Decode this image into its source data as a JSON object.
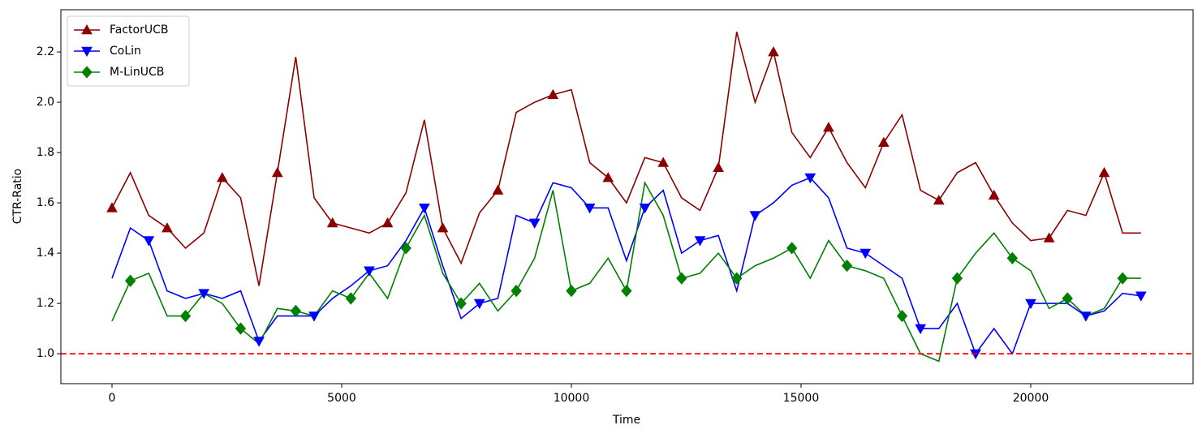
{
  "chart_data": {
    "type": "line",
    "x_label": "Time",
    "y_label": "CTR-Ratio",
    "x": [
      0,
      400,
      800,
      1200,
      1600,
      2000,
      2400,
      2800,
      3200,
      3600,
      4000,
      4400,
      4800,
      5200,
      5600,
      6000,
      6400,
      6800,
      7200,
      7600,
      8000,
      8400,
      8800,
      9200,
      9600,
      10000,
      10400,
      10800,
      11200,
      11600,
      12000,
      12400,
      12800,
      13200,
      13600,
      14000,
      14400,
      14800,
      15200,
      15600,
      16000,
      16400,
      16800,
      17200,
      17600,
      18000,
      18400,
      18800,
      19200,
      19600,
      20000,
      20400,
      20800,
      21200,
      21600,
      22000,
      22400
    ],
    "series": [
      {
        "name": "FactorUCB",
        "color": "#8b0000",
        "marker": "triangle-up",
        "values": [
          1.58,
          1.72,
          1.55,
          1.5,
          1.42,
          1.48,
          1.7,
          1.62,
          1.27,
          1.72,
          2.18,
          1.62,
          1.52,
          1.5,
          1.48,
          1.52,
          1.64,
          1.93,
          1.5,
          1.36,
          1.56,
          1.65,
          1.96,
          2.0,
          2.03,
          2.05,
          1.76,
          1.7,
          1.6,
          1.78,
          1.76,
          1.62,
          1.57,
          1.74,
          2.28,
          2.0,
          2.2,
          1.88,
          1.78,
          1.9,
          1.76,
          1.66,
          1.84,
          1.95,
          1.65,
          1.61,
          1.72,
          1.76,
          1.63,
          1.52,
          1.45,
          1.46,
          1.57,
          1.55,
          1.72,
          1.48,
          1.48
        ]
      },
      {
        "name": "CoLin",
        "color": "#0000ff",
        "marker": "triangle-down",
        "values": [
          1.3,
          1.5,
          1.45,
          1.25,
          1.22,
          1.24,
          1.22,
          1.25,
          1.05,
          1.15,
          1.15,
          1.15,
          1.22,
          1.27,
          1.33,
          1.35,
          1.45,
          1.58,
          1.35,
          1.14,
          1.2,
          1.22,
          1.55,
          1.52,
          1.68,
          1.66,
          1.58,
          1.58,
          1.37,
          1.58,
          1.65,
          1.4,
          1.45,
          1.47,
          1.25,
          1.55,
          1.6,
          1.67,
          1.7,
          1.62,
          1.42,
          1.4,
          1.35,
          1.3,
          1.1,
          1.1,
          1.2,
          1.0,
          1.1,
          1.0,
          1.2,
          1.2,
          1.2,
          1.15,
          1.17,
          1.24,
          1.23
        ]
      },
      {
        "name": "M-LinUCB",
        "color": "#008000",
        "marker": "diamond",
        "values": [
          1.13,
          1.29,
          1.32,
          1.15,
          1.15,
          1.24,
          1.2,
          1.1,
          1.04,
          1.18,
          1.17,
          1.15,
          1.25,
          1.22,
          1.32,
          1.22,
          1.42,
          1.55,
          1.32,
          1.2,
          1.28,
          1.17,
          1.25,
          1.38,
          1.65,
          1.25,
          1.28,
          1.38,
          1.25,
          1.68,
          1.55,
          1.3,
          1.32,
          1.4,
          1.3,
          1.35,
          1.38,
          1.42,
          1.3,
          1.45,
          1.35,
          1.33,
          1.3,
          1.15,
          1.0,
          0.97,
          1.3,
          1.4,
          1.48,
          1.38,
          1.33,
          1.18,
          1.22,
          1.15,
          1.18,
          1.3,
          1.3
        ]
      }
    ],
    "markevery": 3,
    "hline": {
      "value": 1,
      "color": "#ff0000",
      "style": "dashed"
    },
    "xlim": [
      -1113,
      23534
    ],
    "ylim": [
      0.881,
      2.368
    ],
    "xticks": [
      0,
      5000,
      10000,
      15000,
      20000
    ],
    "yticks": [
      {
        "value": 1,
        "label": "1.0"
      },
      1.2,
      1.4,
      1.6,
      1.8,
      {
        "value": 2,
        "label": "2.0"
      },
      2.2
    ],
    "legend": "upper-left",
    "grid": false
  }
}
